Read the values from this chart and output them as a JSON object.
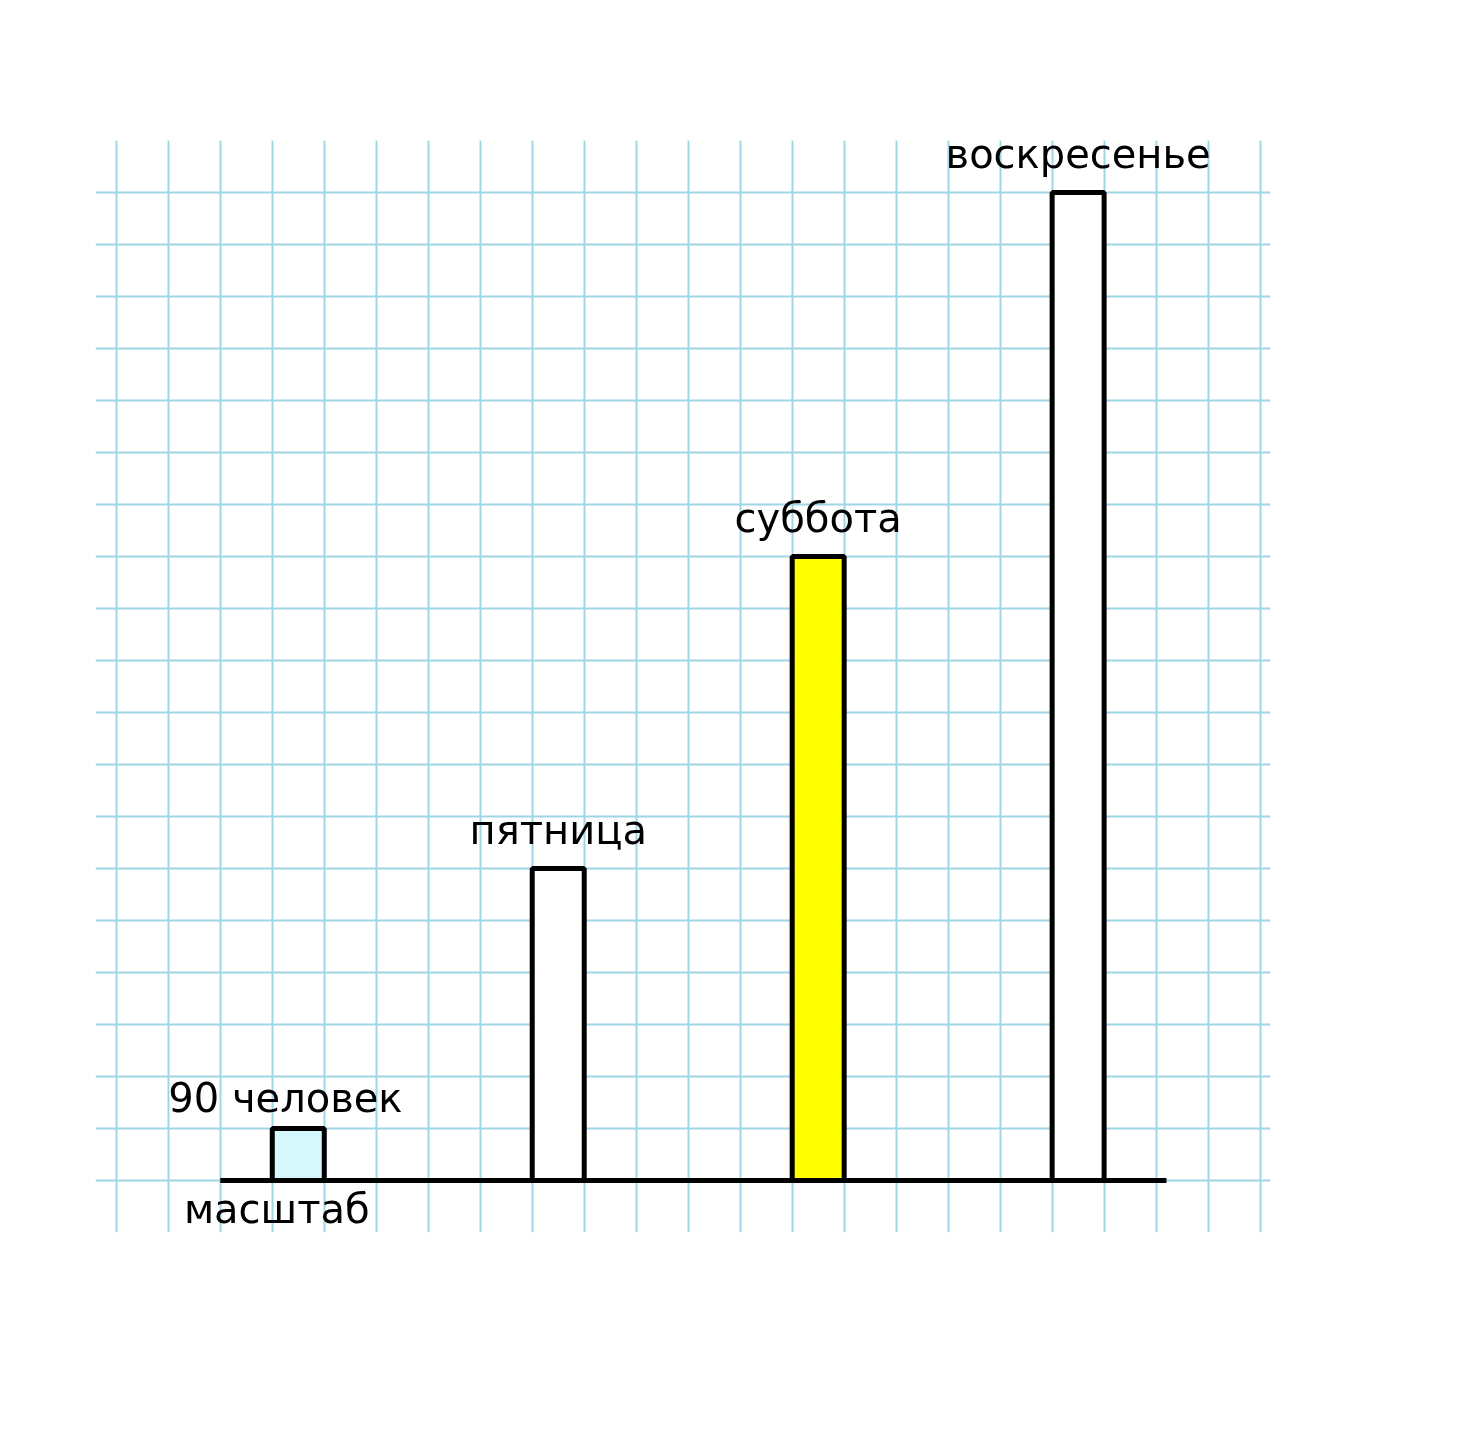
{
  "chart_data": {
    "type": "bar",
    "categories": [
      "масштаб",
      "пятница",
      "суббота",
      "воскресенье"
    ],
    "values": [
      90,
      540,
      1080,
      1710
    ],
    "value_labels": [
      "90 человек",
      null,
      null,
      null
    ],
    "colors": [
      "#d4f8fc",
      "#ffffff",
      "#ffff00",
      "#ffffff"
    ],
    "ylim": [
      -90,
      1800
    ],
    "yticks": [
      {
        "value": 0,
        "label": null
      },
      {
        "value": 90,
        "label": null
      },
      {
        "value": 180,
        "label": null
      },
      {
        "value": 270,
        "label": null
      },
      {
        "value": 360,
        "label": null
      },
      {
        "value": 450,
        "label": null
      },
      {
        "value": 540,
        "label": null
      },
      {
        "value": 630,
        "label": null
      },
      {
        "value": 720,
        "label": null
      },
      {
        "value": 810,
        "label": null
      },
      {
        "value": 900,
        "label": null
      },
      {
        "value": 990,
        "label": null
      },
      {
        "value": 1080,
        "label": null
      },
      {
        "value": 1170,
        "label": null
      },
      {
        "value": 1260,
        "label": null
      },
      {
        "value": 1350,
        "label": null
      },
      {
        "value": 1440,
        "label": null
      },
      {
        "value": 1530,
        "label": null
      },
      {
        "value": 1620,
        "label": null
      },
      {
        "value": 1710,
        "label": null
      }
    ],
    "tick_labels": false,
    "grid": true
  }
}
